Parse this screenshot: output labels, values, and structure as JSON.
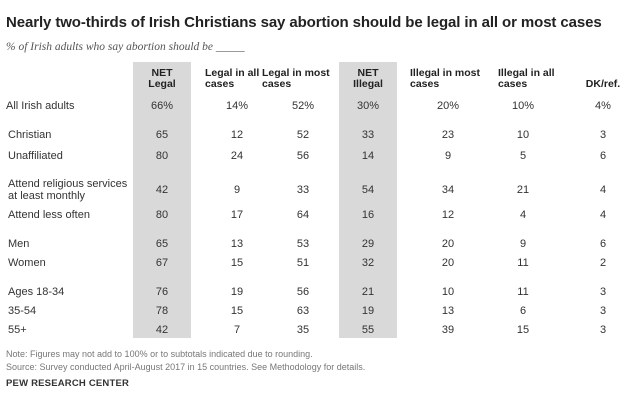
{
  "title": "Nearly two-thirds of Irish Christians say abortion should be legal in all or most cases",
  "subtitle": "% of Irish adults who say abortion should be _____",
  "chart_data": {
    "type": "table",
    "columns": [
      {
        "line1": "NET",
        "line2": "Legal",
        "shaded": true
      },
      {
        "line1": "Legal in all",
        "line2": "cases",
        "shaded": false
      },
      {
        "line1": "Legal in most",
        "line2": "cases",
        "shaded": false
      },
      {
        "line1": "NET",
        "line2": "Illegal",
        "shaded": true
      },
      {
        "line1": "Illegal in most",
        "line2": "cases",
        "shaded": false
      },
      {
        "line1": "Illegal in all",
        "line2": "cases",
        "shaded": false
      },
      {
        "line1": "",
        "line2": "DK/ref.",
        "shaded": false
      }
    ],
    "rows": [
      {
        "label": "All Irish adults",
        "values": [
          "66%",
          "14%",
          "52%",
          "30%",
          "20%",
          "10%",
          "4%"
        ]
      },
      {
        "label": "Christian",
        "values": [
          "65",
          "12",
          "52",
          "33",
          "23",
          "10",
          "3"
        ]
      },
      {
        "label": "Unaffiliated",
        "values": [
          "80",
          "24",
          "56",
          "14",
          "9",
          "5",
          "6"
        ]
      },
      {
        "label": "Attend religious services",
        "label2": "at least monthly",
        "values": [
          "42",
          "9",
          "33",
          "54",
          "34",
          "21",
          "4"
        ]
      },
      {
        "label": "Attend less often",
        "values": [
          "80",
          "17",
          "64",
          "16",
          "12",
          "4",
          "4"
        ]
      },
      {
        "label": "Men",
        "values": [
          "65",
          "13",
          "53",
          "29",
          "20",
          "9",
          "6"
        ]
      },
      {
        "label": "Women",
        "values": [
          "67",
          "15",
          "51",
          "32",
          "20",
          "11",
          "2"
        ]
      },
      {
        "label": "Ages 18-34",
        "values": [
          "76",
          "19",
          "56",
          "21",
          "10",
          "11",
          "3"
        ]
      },
      {
        "label": "35-54",
        "values": [
          "78",
          "15",
          "63",
          "19",
          "13",
          "6",
          "3"
        ]
      },
      {
        "label": "55+",
        "values": [
          "42",
          "7",
          "35",
          "55",
          "39",
          "15",
          "3"
        ]
      }
    ]
  },
  "notes": {
    "note": "Note: Figures may not add to 100% or to subtotals indicated due to rounding.",
    "source": "Source: Survey conducted April-August 2017 in 15 countries. See Methodology for details."
  },
  "brand": "PEW RESEARCH CENTER"
}
